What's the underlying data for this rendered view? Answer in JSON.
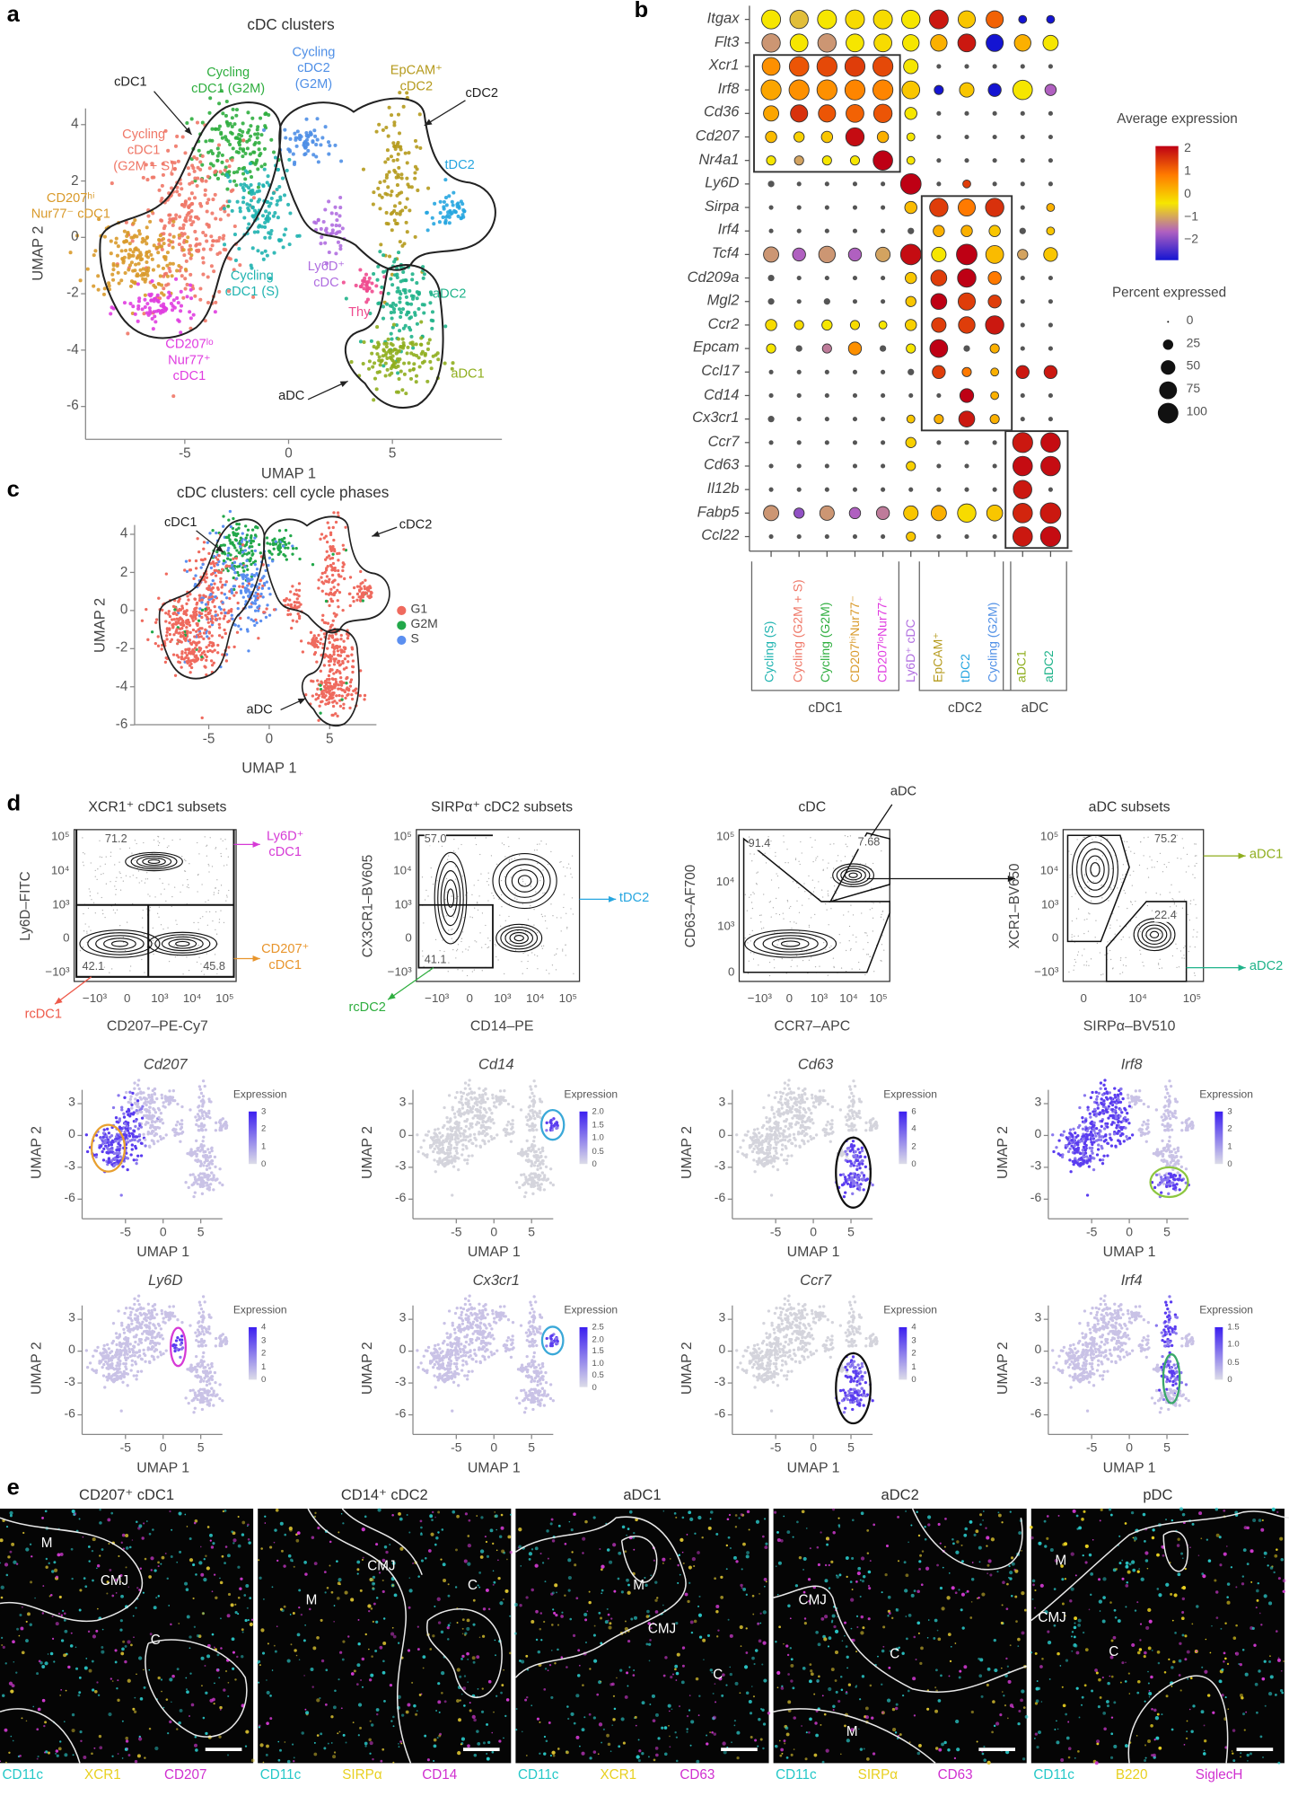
{
  "panel_labels": {
    "a": "a",
    "b": "b",
    "c": "c",
    "d": "d",
    "e": "e"
  },
  "panel_a": {
    "title": "cDC clusters",
    "xlabel": "UMAP 1",
    "ylabel": "UMAP 2",
    "xticks": [
      "-5",
      "0",
      "5"
    ],
    "yticks": [
      "4",
      "2",
      "0",
      "-2",
      "-4",
      "-6"
    ],
    "group_annotations": {
      "cdc1": "cDC1",
      "cdc2": "cDC2",
      "adc": "aDC"
    },
    "clusters": [
      {
        "lines": [
          "Cycling",
          "cDC1 (G2M)"
        ],
        "color": "#2fae3f"
      },
      {
        "lines": [
          "Cycling",
          "cDC2",
          "(G2M)"
        ],
        "color": "#4f8fe6"
      },
      {
        "lines": [
          "EpCAM⁺",
          "cDC2"
        ],
        "color": "#b59a1c"
      },
      {
        "lines": [
          "tDC2"
        ],
        "color": "#27a6e0"
      },
      {
        "lines": [
          "Cycling",
          "cDC1",
          "(G2M + S)"
        ],
        "color": "#ef7767"
      },
      {
        "lines": [
          "CD207ʰⁱ",
          "Nur77⁻ cDC1"
        ],
        "color": "#d99a2b"
      },
      {
        "lines": [
          "Ly6D⁺",
          "cDC"
        ],
        "color": "#b06ee0"
      },
      {
        "lines": [
          "Cycling",
          "cDC1 (S)"
        ],
        "color": "#1fb3b0"
      },
      {
        "lines": [
          "Thy"
        ],
        "color": "#ef4b8f"
      },
      {
        "lines": [
          "aDC2"
        ],
        "color": "#1fb38a"
      },
      {
        "lines": [
          "aDC1"
        ],
        "color": "#8fae1e"
      },
      {
        "lines": [
          "CD207ˡᵒ",
          "Nur77⁺",
          "cDC1"
        ],
        "color": "#e03de0"
      }
    ]
  },
  "panel_c": {
    "title": "cDC clusters: cell cycle phases",
    "xlabel": "UMAP 1",
    "ylabel": "UMAP 2",
    "xticks": [
      "-5",
      "0",
      "5"
    ],
    "yticks": [
      "4",
      "2",
      "0",
      "-2",
      "-4",
      "-6"
    ],
    "group_annotations": {
      "cdc1": "cDC1",
      "cdc2": "cDC2",
      "adc": "aDC"
    },
    "legend": [
      {
        "label": "G1",
        "color": "#ef6a5e"
      },
      {
        "label": "G2M",
        "color": "#22a84a"
      },
      {
        "label": "S",
        "color": "#5b8ff0"
      }
    ]
  },
  "chart_data": {
    "type": "dotplot",
    "genes": [
      "Itgax",
      "Flt3",
      "Xcr1",
      "Irf8",
      "Cd36",
      "Cd207",
      "Nr4a1",
      "Ly6D",
      "Sirpa",
      "Irf4",
      "Tcf4",
      "Cd209a",
      "Mgl2",
      "Ccr2",
      "Epcam",
      "Ccl17",
      "Cd14",
      "Cx3cr1",
      "Ccr7",
      "Cd63",
      "Il12b",
      "Fabp5",
      "Ccl22"
    ],
    "clusters": [
      {
        "label": "Cycling (S)",
        "color": "#1fb3b0"
      },
      {
        "label": "Cycling (G2M + S)",
        "color": "#ef7767"
      },
      {
        "label": "Cycling (G2M)",
        "color": "#2fae3f"
      },
      {
        "label": "CD207ʰⁱNur77⁻",
        "color": "#d99a2b"
      },
      {
        "label": "CD207ˡᵒNur77⁺",
        "color": "#e03de0"
      },
      {
        "label": "Ly6D⁺ cDC",
        "color": "#b06ee0"
      },
      {
        "label": "EpCAM⁺",
        "color": "#b59a1c"
      },
      {
        "label": "tDC2",
        "color": "#27a6e0"
      },
      {
        "label": "Cycling (G2M)",
        "color": "#4f8fe6"
      },
      {
        "label": "aDC1",
        "color": "#8fae1e"
      },
      {
        "label": "aDC2",
        "color": "#1fb38a"
      }
    ],
    "groups": [
      {
        "name": "cDC1",
        "first": 0,
        "last": 4
      },
      {
        "name": "cDC2",
        "first": 6,
        "last": 8
      },
      {
        "name": "aDC",
        "first": 9,
        "last": 10
      }
    ],
    "avg_expression": [
      [
        0,
        -0.3,
        0,
        0.1,
        0.1,
        0,
        1.8,
        0.3,
        1.2,
        -2,
        -2
      ],
      [
        -0.6,
        0,
        -0.6,
        0,
        0.1,
        0,
        0.5,
        1.8,
        -2,
        0.5,
        0
      ],
      [
        0.8,
        1.3,
        1.4,
        1.5,
        1.4,
        0,
        0,
        0,
        0,
        0,
        0
      ],
      [
        0.6,
        0.8,
        0.8,
        0.9,
        0.9,
        0.3,
        -2,
        0.3,
        -2,
        0,
        -1
      ],
      [
        0.6,
        1.6,
        1.3,
        1.2,
        1.3,
        0,
        0,
        0,
        0,
        0,
        0
      ],
      [
        0.4,
        0.2,
        0.3,
        1.9,
        0.5,
        0,
        0,
        0,
        0,
        0,
        0
      ],
      [
        0,
        -0.5,
        0,
        0,
        2,
        0,
        0,
        0,
        0,
        0,
        0
      ],
      [
        0.2,
        0,
        0,
        0,
        0,
        2,
        0,
        1.5,
        0,
        0,
        0
      ],
      [
        0,
        0,
        0,
        0,
        0,
        0.4,
        1.5,
        1,
        1.6,
        0,
        0.5
      ],
      [
        0,
        0,
        0,
        0,
        0,
        0,
        0.5,
        0.5,
        0.3,
        0,
        0.3
      ],
      [
        -0.6,
        -1,
        -0.6,
        -1,
        -0.5,
        1.9,
        0,
        2,
        0.4,
        -0.5,
        0.3
      ],
      [
        0,
        0,
        0,
        0,
        0,
        0.3,
        1.5,
        2,
        1,
        0,
        0
      ],
      [
        0,
        0,
        0,
        0,
        0,
        0.3,
        2,
        1.5,
        1.5,
        0,
        0
      ],
      [
        0.1,
        0.1,
        0,
        0.1,
        0,
        0.2,
        1.5,
        1.5,
        1.8,
        0,
        0
      ],
      [
        0,
        -1,
        -0.8,
        0.8,
        -0.5,
        0,
        2,
        0,
        0.5,
        0,
        0
      ],
      [
        0,
        0,
        0,
        0,
        0,
        0.2,
        1.5,
        1,
        0.5,
        1.8,
        1.8
      ],
      [
        0,
        0,
        0,
        0,
        0,
        0,
        0,
        2,
        0.5,
        0,
        0
      ],
      [
        0,
        0,
        0,
        0,
        0,
        0.3,
        0.5,
        1.8,
        0.5,
        0,
        0
      ],
      [
        0,
        0,
        0,
        0,
        0,
        0.2,
        0,
        0,
        0,
        1.8,
        1.9
      ],
      [
        0,
        0,
        0,
        0,
        0,
        0.2,
        0,
        0,
        0,
        1.9,
        1.9
      ],
      [
        0,
        0,
        0,
        0,
        0,
        0,
        0,
        0,
        0,
        1.8,
        0
      ],
      [
        -0.6,
        -1.2,
        -0.6,
        -1,
        -0.8,
        0.3,
        0.5,
        0.1,
        0.3,
        1.7,
        1.8
      ],
      [
        0,
        0,
        0,
        0,
        0,
        0.3,
        0,
        0,
        0,
        1.8,
        1.9
      ]
    ],
    "percent_expressed": [
      [
        85,
        80,
        85,
        85,
        85,
        80,
        85,
        70,
        70,
        15,
        15
      ],
      [
        80,
        75,
        80,
        75,
        75,
        65,
        65,
        75,
        70,
        65,
        55
      ],
      [
        75,
        90,
        95,
        95,
        95,
        50,
        5,
        5,
        5,
        5,
        5
      ],
      [
        95,
        95,
        95,
        95,
        95,
        75,
        20,
        50,
        40,
        90,
        30
      ],
      [
        55,
        70,
        70,
        75,
        80,
        35,
        5,
        5,
        5,
        5,
        5
      ],
      [
        30,
        25,
        30,
        80,
        30,
        15,
        5,
        5,
        5,
        5,
        5
      ],
      [
        20,
        20,
        20,
        20,
        90,
        15,
        5,
        5,
        5,
        5,
        5
      ],
      [
        10,
        5,
        5,
        5,
        5,
        100,
        5,
        15,
        5,
        5,
        5
      ],
      [
        5,
        5,
        5,
        5,
        5,
        35,
        80,
        70,
        80,
        5,
        15
      ],
      [
        5,
        5,
        5,
        5,
        5,
        10,
        30,
        30,
        30,
        10,
        15
      ],
      [
        55,
        40,
        65,
        40,
        50,
        100,
        50,
        100,
        75,
        25,
        45
      ],
      [
        10,
        5,
        5,
        5,
        5,
        30,
        60,
        80,
        40,
        5,
        5
      ],
      [
        10,
        5,
        10,
        5,
        5,
        25,
        60,
        70,
        40,
        5,
        5
      ],
      [
        30,
        20,
        25,
        20,
        15,
        30,
        50,
        65,
        80,
        5,
        5
      ],
      [
        20,
        10,
        20,
        40,
        10,
        20,
        75,
        10,
        20,
        5,
        5
      ],
      [
        5,
        5,
        5,
        5,
        5,
        10,
        40,
        20,
        15,
        40,
        40
      ],
      [
        5,
        5,
        5,
        5,
        5,
        5,
        5,
        45,
        15,
        5,
        5
      ],
      [
        10,
        5,
        5,
        5,
        5,
        15,
        20,
        60,
        20,
        5,
        5
      ],
      [
        5,
        5,
        5,
        5,
        5,
        25,
        5,
        5,
        5,
        95,
        90
      ],
      [
        5,
        5,
        5,
        5,
        5,
        20,
        5,
        5,
        5,
        90,
        90
      ],
      [
        5,
        5,
        5,
        5,
        5,
        5,
        5,
        5,
        5,
        80,
        5
      ],
      [
        55,
        25,
        50,
        30,
        40,
        50,
        55,
        80,
        60,
        90,
        100
      ],
      [
        5,
        5,
        5,
        5,
        5,
        20,
        5,
        5,
        5,
        90,
        95
      ]
    ],
    "color_legend_title": "Average expression",
    "color_ticks": [
      "2",
      "1",
      "0",
      "−1",
      "−2"
    ],
    "color_range": [
      -2,
      2
    ],
    "size_legend_title": "Percent expressed",
    "size_ticks": [
      "0",
      "25",
      "50",
      "75",
      "100"
    ],
    "size_values": [
      0,
      25,
      50,
      75,
      100
    ]
  },
  "panel_d_flow": [
    {
      "title": "XCR1⁺ cDC1 subsets",
      "ylabel": "Ly6D–FITC",
      "xlabel": "CD207–PE-Cy7",
      "yticks": [
        "10⁵",
        "10⁴",
        "10³",
        "0",
        "−10³"
      ],
      "xticks": [
        "−10³",
        "0",
        "10³",
        "10⁴",
        "10⁵"
      ],
      "gates": [
        "71.2",
        "42.1",
        "45.8"
      ],
      "callouts": [
        {
          "lines": [
            "Ly6D⁺",
            "cDC1"
          ],
          "color": "#d63ad6"
        },
        {
          "lines": [
            "CD207⁺",
            "cDC1"
          ],
          "color": "#e8952c"
        },
        {
          "lines": [
            "rcDC1"
          ],
          "color": "#ee5a4a"
        }
      ]
    },
    {
      "title": "SIRPα⁺ cDC2 subsets",
      "ylabel": "CX3CR1–BV605",
      "xlabel": "CD14–PE",
      "yticks": [
        "10⁵",
        "10⁴",
        "10³",
        "0",
        "−10³"
      ],
      "xticks": [
        "−10³",
        "0",
        "10³",
        "10⁴",
        "10⁵"
      ],
      "gates": [
        "57.0",
        "41.1"
      ],
      "callouts": [
        {
          "lines": [
            "tDC2"
          ],
          "color": "#27a6e0"
        },
        {
          "lines": [
            "rcDC2"
          ],
          "color": "#2fae3f"
        }
      ]
    },
    {
      "title": "cDC",
      "ylabel": "CD63–AF700",
      "xlabel": "CCR7–APC",
      "yticks": [
        "10⁵",
        "10⁴",
        "10³",
        "0"
      ],
      "xticks": [
        "−10³",
        "0",
        "10³",
        "10⁴",
        "10⁵"
      ],
      "gates": [
        "91.4",
        "7.68"
      ],
      "callouts": [
        {
          "lines": [
            "aDC"
          ],
          "color": "#333333"
        }
      ]
    },
    {
      "title": "aDC subsets",
      "ylabel": "XCR1–BV650",
      "xlabel": "SIRPα–BV510",
      "yticks": [
        "10⁵",
        "10⁴",
        "10³",
        "0",
        "−10³"
      ],
      "xticks": [
        "0",
        "10⁴",
        "10⁵"
      ],
      "gates": [
        "75.2",
        "22.4"
      ],
      "callouts": [
        {
          "lines": [
            "aDC1"
          ],
          "color": "#8fae1e"
        },
        {
          "lines": [
            "aDC2"
          ],
          "color": "#1fb38a"
        }
      ]
    }
  ],
  "panel_d_features": {
    "xlabel": "UMAP 1",
    "ylabel": "UMAP 2",
    "legend_title": "Expression",
    "xticks": [
      "-5",
      "0",
      "5"
    ],
    "yticks": [
      "3",
      "0",
      "-3",
      "-6"
    ],
    "plots": [
      {
        "gene": "Cd207",
        "ticks": [
          "3",
          "2",
          "1",
          "0"
        ],
        "outline": "#e8a030"
      },
      {
        "gene": "Cd14",
        "ticks": [
          "2.0",
          "1.5",
          "1.0",
          "0.5",
          "0"
        ],
        "outline": "#3aa8d8"
      },
      {
        "gene": "Cd63",
        "ticks": [
          "6",
          "4",
          "2",
          "0"
        ],
        "outline": "#111111"
      },
      {
        "gene": "Irf8",
        "ticks": [
          "3",
          "2",
          "1",
          "0"
        ],
        "outline": "#8cc63f"
      },
      {
        "gene": "Ly6D",
        "ticks": [
          "4",
          "3",
          "2",
          "1",
          "0"
        ],
        "outline": "#d63ad6"
      },
      {
        "gene": "Cx3cr1",
        "ticks": [
          "2.5",
          "2.0",
          "1.5",
          "1.0",
          "0.5",
          "0"
        ],
        "outline": "#3aa8d8"
      },
      {
        "gene": "Ccr7",
        "ticks": [
          "4",
          "3",
          "2",
          "1",
          "0"
        ],
        "outline": "#111111"
      },
      {
        "gene": "Irf4",
        "ticks": [
          "1.5",
          "1.0",
          "0.5",
          "0"
        ],
        "outline": "#3aa86a"
      }
    ]
  },
  "panel_e": {
    "regions": {
      "m": "M",
      "cmj": "CMJ",
      "c": "C"
    },
    "images": [
      {
        "title": "CD207⁺ cDC1",
        "channels": [
          {
            "label": "CD11c",
            "color": "#25c8c8"
          },
          {
            "label": "XCR1",
            "color": "#e8d020"
          },
          {
            "label": "CD207",
            "color": "#d030d0"
          }
        ]
      },
      {
        "title": "CD14⁺ cDC2",
        "channels": [
          {
            "label": "CD11c",
            "color": "#25c8c8"
          },
          {
            "label": "SIRPα",
            "color": "#e8d020"
          },
          {
            "label": "CD14",
            "color": "#d030d0"
          }
        ]
      },
      {
        "title": "aDC1",
        "channels": [
          {
            "label": "CD11c",
            "color": "#25c8c8"
          },
          {
            "label": "XCR1",
            "color": "#e8d020"
          },
          {
            "label": "CD63",
            "color": "#d030d0"
          }
        ]
      },
      {
        "title": "aDC2",
        "channels": [
          {
            "label": "CD11c",
            "color": "#25c8c8"
          },
          {
            "label": "SIRPα",
            "color": "#e8d020"
          },
          {
            "label": "CD63",
            "color": "#d030d0"
          }
        ]
      },
      {
        "title": "pDC",
        "channels": [
          {
            "label": "CD11c",
            "color": "#25c8c8"
          },
          {
            "label": "B220",
            "color": "#e8d020"
          },
          {
            "label": "SiglecH",
            "color": "#d030d0"
          }
        ]
      }
    ]
  }
}
